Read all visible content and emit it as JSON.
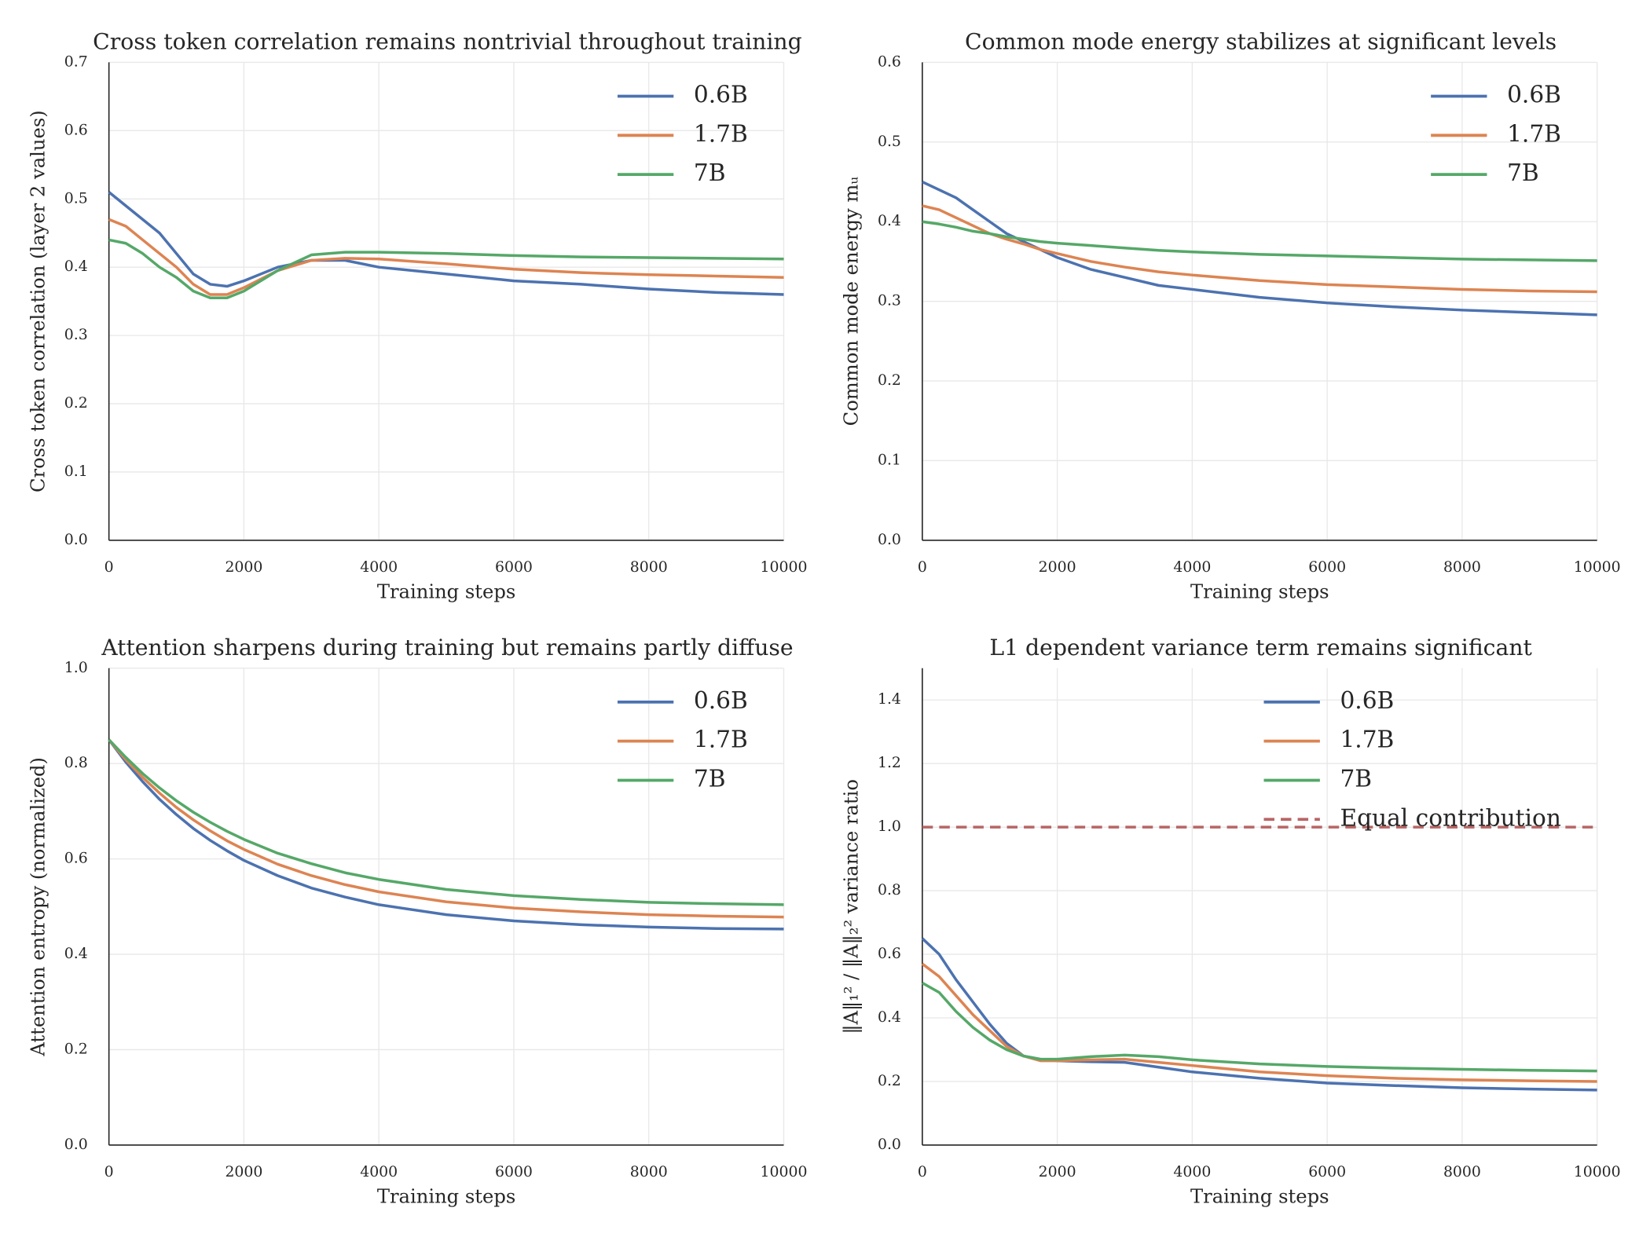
{
  "chart_data": [
    {
      "type": "line",
      "title": "Cross token correlation remains nontrivial throughout training",
      "xlabel": "Training steps",
      "ylabel": "Cross token correlation (layer 2 values)",
      "x": [
        0,
        250,
        500,
        750,
        1000,
        1250,
        1500,
        1750,
        2000,
        2500,
        3000,
        3500,
        4000,
        5000,
        6000,
        7000,
        8000,
        9000,
        10000
      ],
      "series": [
        {
          "name": "0.6B",
          "color": "#4c72b0",
          "values": [
            0.51,
            0.49,
            0.47,
            0.45,
            0.42,
            0.39,
            0.375,
            0.372,
            0.38,
            0.4,
            0.41,
            0.41,
            0.4,
            0.39,
            0.38,
            0.375,
            0.368,
            0.363,
            0.36
          ]
        },
        {
          "name": "1.7B",
          "color": "#dd8452",
          "values": [
            0.47,
            0.46,
            0.44,
            0.42,
            0.4,
            0.375,
            0.36,
            0.36,
            0.37,
            0.395,
            0.41,
            0.413,
            0.412,
            0.405,
            0.397,
            0.392,
            0.389,
            0.387,
            0.385
          ]
        },
        {
          "name": "7B",
          "color": "#55a868",
          "values": [
            0.44,
            0.435,
            0.42,
            0.4,
            0.385,
            0.365,
            0.355,
            0.355,
            0.365,
            0.395,
            0.418,
            0.422,
            0.422,
            0.42,
            0.417,
            0.415,
            0.414,
            0.413,
            0.412
          ]
        }
      ],
      "xlim": [
        0,
        10000
      ],
      "xticks": [
        0,
        2000,
        4000,
        6000,
        8000,
        10000
      ],
      "ylim": [
        0,
        0.7
      ],
      "yticks": [
        {
          "value": 0,
          "label": "0.0"
        },
        0.1,
        0.2,
        0.3,
        0.4,
        0.5,
        0.6,
        0.7
      ],
      "grid": true,
      "legend": "upper right"
    },
    {
      "type": "line",
      "title": "Common mode energy stabilizes at significant levels",
      "xlabel": "Training steps",
      "ylabel": "Common mode energy mᵤ",
      "x": [
        0,
        250,
        500,
        750,
        1000,
        1250,
        1500,
        1750,
        2000,
        2500,
        3000,
        3500,
        4000,
        5000,
        6000,
        7000,
        8000,
        9000,
        10000
      ],
      "series": [
        {
          "name": "0.6B",
          "color": "#4c72b0",
          "values": [
            0.45,
            0.44,
            0.43,
            0.415,
            0.4,
            0.385,
            0.375,
            0.365,
            0.355,
            0.34,
            0.33,
            0.32,
            0.315,
            0.305,
            0.298,
            0.293,
            0.289,
            0.286,
            0.283
          ]
        },
        {
          "name": "1.7B",
          "color": "#dd8452",
          "values": [
            0.42,
            0.415,
            0.405,
            0.395,
            0.385,
            0.378,
            0.372,
            0.365,
            0.36,
            0.35,
            0.343,
            0.337,
            0.333,
            0.326,
            0.321,
            0.318,
            0.315,
            0.313,
            0.312
          ]
        },
        {
          "name": "7B",
          "color": "#55a868",
          "values": [
            0.4,
            0.397,
            0.393,
            0.388,
            0.385,
            0.381,
            0.378,
            0.375,
            0.373,
            0.37,
            0.367,
            0.364,
            0.362,
            0.359,
            0.357,
            0.355,
            0.353,
            0.352,
            0.351
          ]
        }
      ],
      "xlim": [
        0,
        10000
      ],
      "xticks": [
        0,
        2000,
        4000,
        6000,
        8000,
        10000
      ],
      "ylim": [
        0,
        0.6
      ],
      "yticks": [
        {
          "value": 0,
          "label": "0.0"
        },
        0.1,
        0.2,
        0.3,
        0.4,
        0.5,
        0.6
      ],
      "grid": true,
      "legend": "upper right"
    },
    {
      "type": "line",
      "title": "Attention sharpens during training but remains partly diffuse",
      "xlabel": "Training steps",
      "ylabel": "Attention entropy (normalized)",
      "x": [
        0,
        250,
        500,
        750,
        1000,
        1250,
        1500,
        1750,
        2000,
        2500,
        3000,
        3500,
        4000,
        5000,
        6000,
        7000,
        8000,
        9000,
        10000
      ],
      "series": [
        {
          "name": "0.6B",
          "color": "#4c72b0",
          "values": [
            0.85,
            0.803,
            0.762,
            0.725,
            0.693,
            0.664,
            0.639,
            0.617,
            0.597,
            0.565,
            0.539,
            0.52,
            0.504,
            0.483,
            0.47,
            0.462,
            0.457,
            0.454,
            0.453
          ]
        },
        {
          "name": "1.7B",
          "color": "#dd8452",
          "values": [
            0.85,
            0.808,
            0.771,
            0.738,
            0.708,
            0.682,
            0.659,
            0.638,
            0.62,
            0.589,
            0.565,
            0.546,
            0.531,
            0.51,
            0.497,
            0.489,
            0.483,
            0.48,
            0.478
          ]
        },
        {
          "name": "7B",
          "color": "#55a868",
          "values": [
            0.85,
            0.813,
            0.779,
            0.749,
            0.722,
            0.698,
            0.677,
            0.658,
            0.641,
            0.612,
            0.59,
            0.571,
            0.557,
            0.536,
            0.523,
            0.515,
            0.509,
            0.506,
            0.504
          ]
        }
      ],
      "xlim": [
        0,
        10000
      ],
      "xticks": [
        0,
        2000,
        4000,
        6000,
        8000,
        10000
      ],
      "ylim": [
        0,
        1.0
      ],
      "yticks": [
        {
          "value": 0,
          "label": "0.0"
        },
        0.2,
        0.4,
        0.6,
        0.8,
        {
          "value": 1.0,
          "label": "1.0"
        }
      ],
      "grid": true,
      "legend": "upper right"
    },
    {
      "type": "line",
      "title": "L1 dependent variance term remains significant",
      "xlabel": "Training steps",
      "ylabel": "‖A‖₁² / ‖A‖₂² variance ratio",
      "x": [
        0,
        250,
        500,
        750,
        1000,
        1250,
        1500,
        1750,
        2000,
        2500,
        3000,
        3500,
        4000,
        5000,
        6000,
        7000,
        8000,
        9000,
        10000
      ],
      "series": [
        {
          "name": "0.6B",
          "color": "#4c72b0",
          "values": [
            0.65,
            0.6,
            0.52,
            0.45,
            0.38,
            0.32,
            0.28,
            0.27,
            0.265,
            0.262,
            0.26,
            0.245,
            0.23,
            0.21,
            0.195,
            0.187,
            0.18,
            0.176,
            0.173
          ]
        },
        {
          "name": "1.7B",
          "color": "#dd8452",
          "values": [
            0.57,
            0.53,
            0.47,
            0.41,
            0.36,
            0.31,
            0.28,
            0.265,
            0.265,
            0.268,
            0.27,
            0.26,
            0.25,
            0.23,
            0.218,
            0.21,
            0.205,
            0.202,
            0.2
          ]
        },
        {
          "name": "7B",
          "color": "#55a868",
          "values": [
            0.51,
            0.48,
            0.42,
            0.37,
            0.33,
            0.3,
            0.28,
            0.27,
            0.27,
            0.278,
            0.283,
            0.278,
            0.268,
            0.255,
            0.247,
            0.242,
            0.238,
            0.235,
            0.233
          ]
        }
      ],
      "reference_lines": [
        {
          "name": "Equal contribution",
          "value": 1.0,
          "color": "#b86565",
          "dashed": true
        }
      ],
      "xlim": [
        0,
        10000
      ],
      "xticks": [
        0,
        2000,
        4000,
        6000,
        8000,
        10000
      ],
      "ylim": [
        0,
        1.5
      ],
      "yticks": [
        {
          "value": 0,
          "label": "0.0"
        },
        0.2,
        0.4,
        0.6,
        0.8,
        {
          "value": 1.0,
          "label": "1.0"
        },
        1.2,
        1.4
      ],
      "grid": true,
      "legend": "upper right"
    }
  ]
}
